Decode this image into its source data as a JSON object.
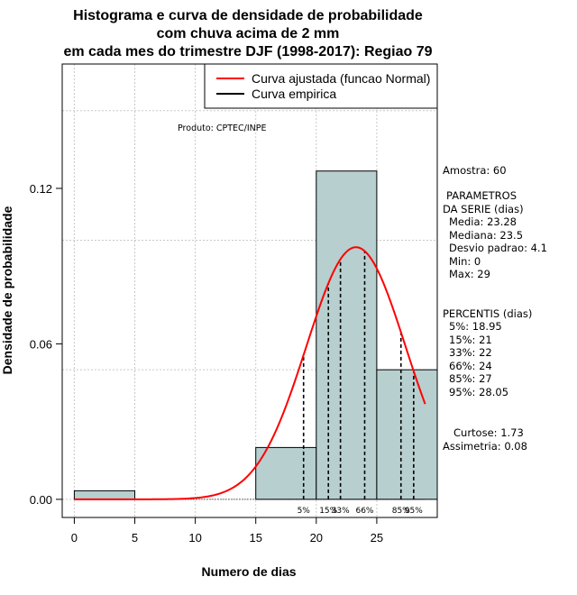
{
  "chart_data": {
    "type": "bar",
    "title": [
      "Histograma e curva de densidade de probabilidade",
      "com chuva acima de 2 mm",
      "em cada mes do trimestre DJF (1998-2017): Regiao 79"
    ],
    "xlabel": "Numero de dias",
    "ylabel": "Densidade de probabilidade",
    "xlim": [
      -1,
      30
    ],
    "ylim": [
      -0.007,
      0.168
    ],
    "x_ticks": [
      0,
      5,
      10,
      15,
      20,
      25
    ],
    "x_tick_labels": [
      "0",
      "5",
      "10",
      "15",
      "20",
      "25"
    ],
    "y_ticks": [
      0.0,
      0.06,
      0.12
    ],
    "y_tick_labels": [
      "0.00",
      "0.06",
      "0.12"
    ],
    "grid_x": [
      0,
      5,
      10,
      15,
      20,
      25,
      30
    ],
    "grid_y": [
      0.0,
      0.05,
      0.1,
      0.15
    ],
    "bins": [
      {
        "start": 0,
        "end": 5,
        "density": 0.0033
      },
      {
        "start": 5,
        "end": 10,
        "density": 0.0
      },
      {
        "start": 10,
        "end": 15,
        "density": 0.0
      },
      {
        "start": 15,
        "end": 20,
        "density": 0.02
      },
      {
        "start": 20,
        "end": 25,
        "density": 0.1267
      },
      {
        "start": 25,
        "end": 30,
        "density": 0.05
      }
    ],
    "fitted_curve": {
      "name": "Curva ajustada (funcao Normal)",
      "distribution": "normal",
      "mean": 23.28,
      "sd": 4.1,
      "x_from": 0,
      "x_to": 29,
      "color": "#ff0000"
    },
    "percentiles": [
      {
        "label": "5%",
        "value": 18.95
      },
      {
        "label": "15%",
        "value": 21
      },
      {
        "label": "33%",
        "value": 22
      },
      {
        "label": "66%",
        "value": 24
      },
      {
        "label": "85%",
        "value": 27
      },
      {
        "label": "95%",
        "value": 28.05
      }
    ],
    "legend": {
      "position": "top-right",
      "items": [
        {
          "label": "Curva ajustada (funcao Normal)",
          "color": "#ff0000"
        },
        {
          "label": "Curva empirica",
          "color": "#000000"
        }
      ]
    },
    "annotation": "Produto: CPTEC/INPE",
    "bar_color": "#b7cfcf"
  },
  "side_panel": {
    "amostra": "Amostra: 60",
    "parametros_title_1": "PARAMETROS",
    "parametros_title_2": "DA SERIE (dias)",
    "parametros": [
      "Media: 23.28",
      "Mediana: 23.5",
      "Desvio padrao: 4.1",
      "Min: 0",
      "Max: 29"
    ],
    "percentis_title": "PERCENTIS (dias)",
    "percentis": [
      "5%: 18.95",
      "15%: 21",
      "33%: 22",
      "66%: 24",
      "85%: 27",
      "95%: 28.05"
    ],
    "curtose": "Curtose: 1.73",
    "assimetria": "Assimetria: 0.08"
  }
}
